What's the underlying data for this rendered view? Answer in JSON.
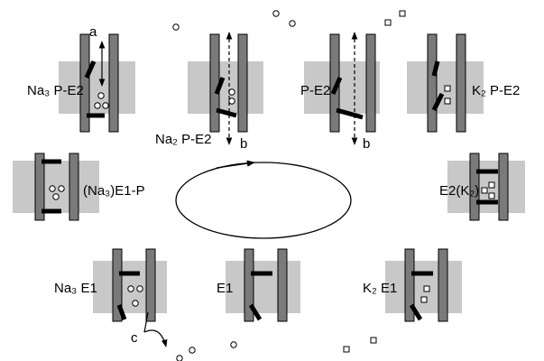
{
  "labels": [
    "Na₃ P-E2",
    "Na₂ P-E2",
    "P-E2",
    "K₂ P-E2",
    "(Na₃)E1-P",
    "E2(K₂)",
    "Na₃ E1",
    "E1",
    "K₂ E1"
  ],
  "letters": [
    "a",
    "b",
    "b",
    "c"
  ]
}
